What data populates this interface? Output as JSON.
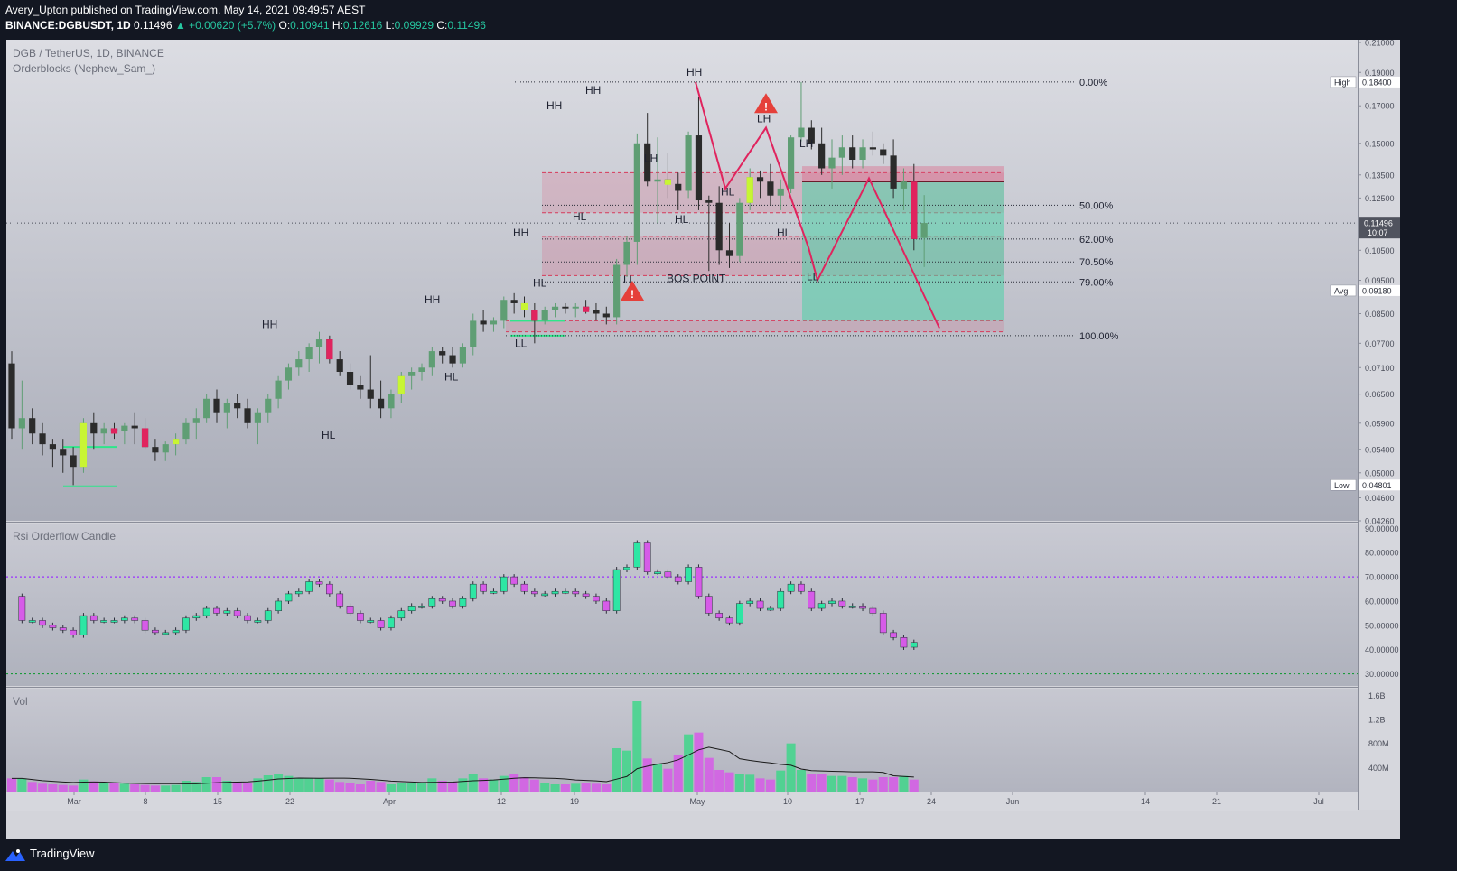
{
  "header": {
    "publisher_line": "Avery_Upton published on TradingView.com, May 14, 2021 09:49:57 AEST",
    "symbol": "BINANCE:DGBUSDT, 1D",
    "last": "0.11496",
    "change": "▲ +0.00620 (+5.7%)",
    "o_label": "O:",
    "o": "0.10941",
    "h_label": "H:",
    "h": "0.12616",
    "l_label": "L:",
    "l": "0.09929",
    "c_label": "C:",
    "c": "0.11496"
  },
  "main_pane": {
    "title": "DGB / TetherUS, 1D, BINANCE",
    "indicator": "Orderblocks (Nephew_Sam_)",
    "price_axis": [
      "0.21000",
      "0.19000",
      "0.17000",
      "0.15000",
      "0.13500",
      "0.12500",
      "0.10500",
      "0.09500",
      "0.08500",
      "0.07700",
      "0.07100",
      "0.06500",
      "0.05900",
      "0.05400",
      "0.05000",
      "0.04600",
      "0.04260"
    ],
    "high_label": "High",
    "high_value": "0.18400",
    "avg_label": "Avg",
    "avg_value": "0.09180",
    "low_label": "Low",
    "low_value": "0.04801",
    "current_price": "0.11496",
    "countdown": "10:07",
    "fib_levels": [
      "0.00%",
      "50.00%",
      "62.00%",
      "70.50%",
      "79.00%",
      "100.00%"
    ],
    "bos_label": "BOS POINT",
    "structure_labels": [
      "HH",
      "HL",
      "HH",
      "HL",
      "HH",
      "HL",
      "HH",
      "HL",
      "HH",
      "HL",
      "LL",
      "LH",
      "HL",
      "HH",
      "LH",
      "HL",
      "LH",
      "LL",
      "LL"
    ]
  },
  "rsi_pane": {
    "title": "Rsi Orderflow Candle",
    "axis": [
      "90.00000",
      "80.00000",
      "70.00000",
      "60.00000",
      "50.00000",
      "40.00000",
      "30.00000"
    ]
  },
  "vol_pane": {
    "title": "Vol",
    "axis": [
      "1.6B",
      "1.2B",
      "800M",
      "400M"
    ]
  },
  "time_axis": [
    "Mar",
    "8",
    "15",
    "22",
    "Apr",
    "12",
    "19",
    "May",
    "10",
    "17",
    "24",
    "Jun",
    "14",
    "21",
    "Jul"
  ],
  "footer": {
    "brand": "TradingView"
  },
  "colors": {
    "up": "#5f9e74",
    "down": "#2b2b2b",
    "rsi_up": "#2ee6a4",
    "rsi_down": "#d65be8",
    "zigzag": "#e0245e",
    "target": "#4fd1a7"
  },
  "chart_data": {
    "type": "candlestick",
    "series": [
      {
        "name": "DGB / TetherUS",
        "values": []
      }
    ]
  }
}
